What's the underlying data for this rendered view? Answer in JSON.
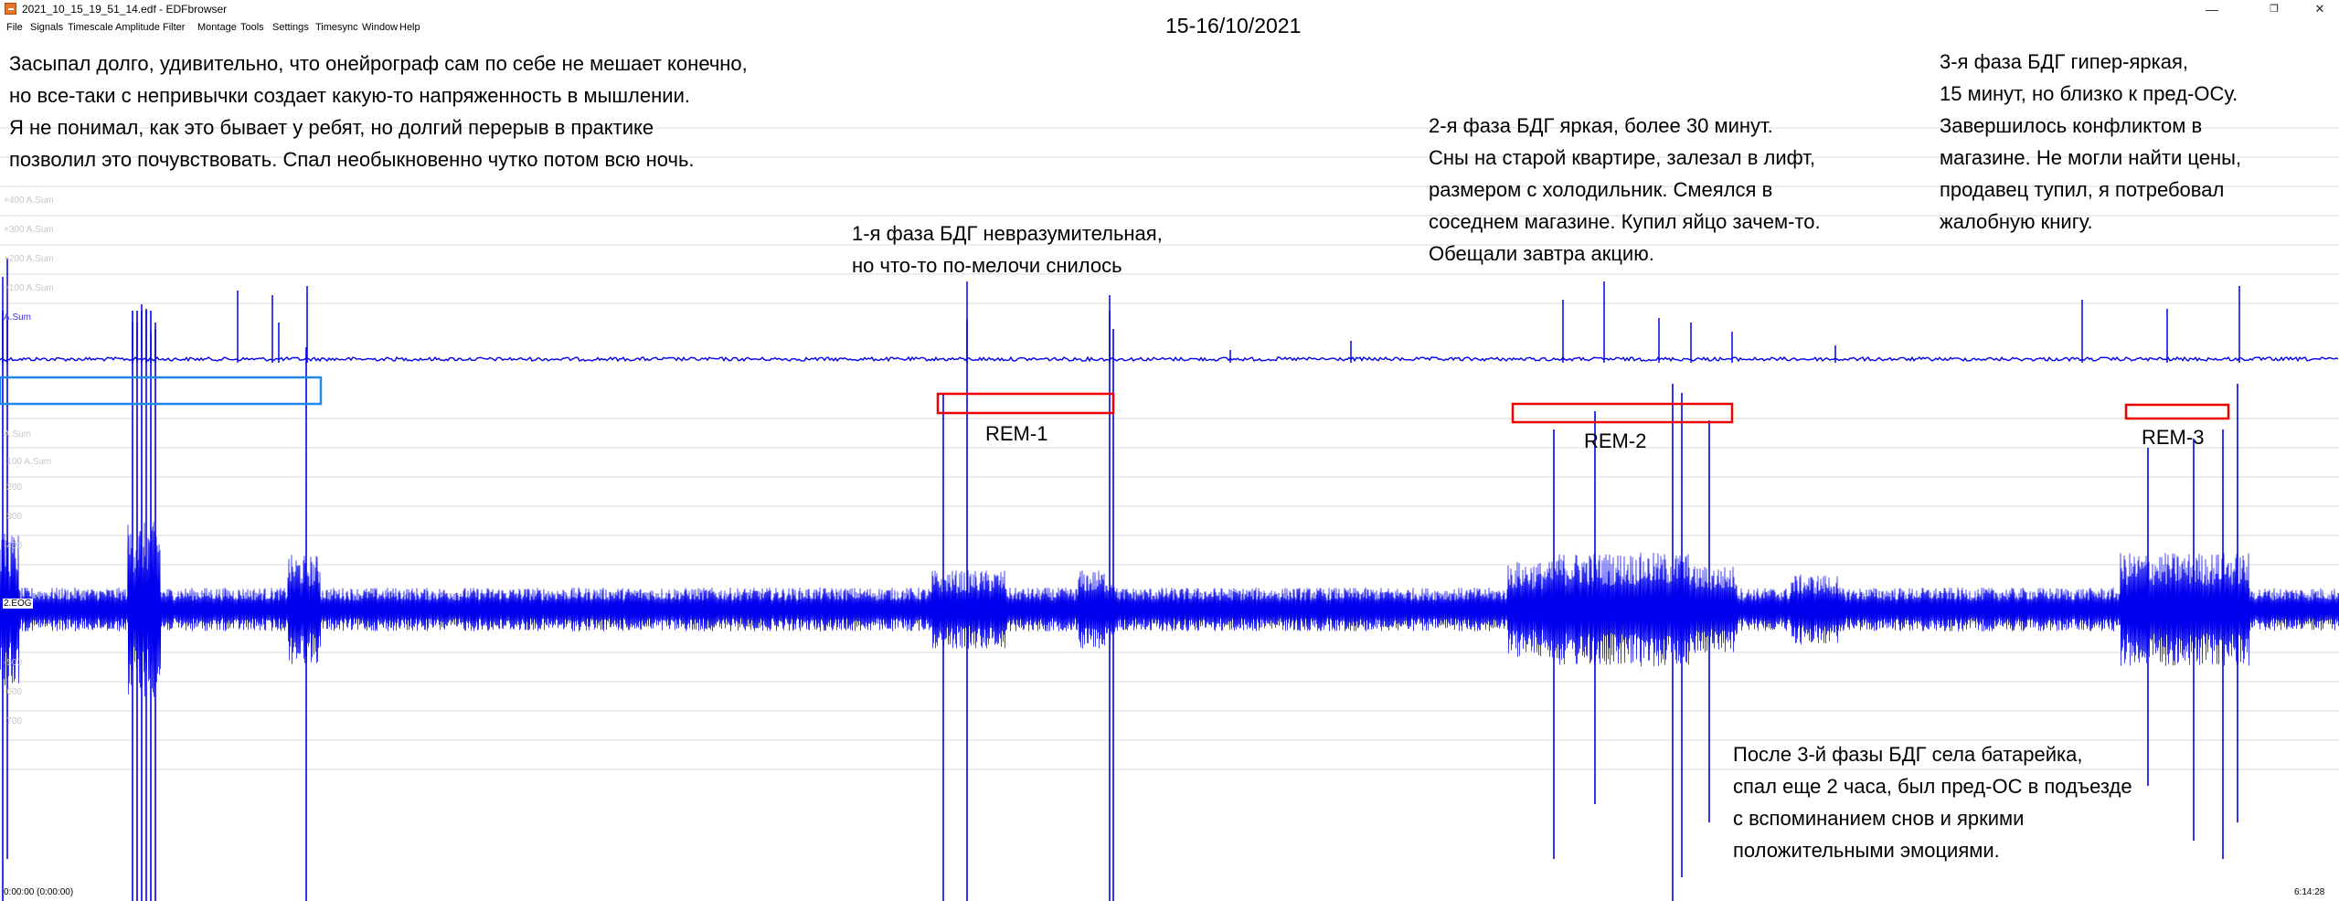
{
  "window": {
    "title": "2021_10_15_19_51_14.edf - EDFbrowser",
    "controls": {
      "minimize": "—",
      "maximize": "❐",
      "close": "✕"
    }
  },
  "menu": [
    "File",
    "Signals",
    "Timescale",
    "Amplitude",
    "Filter",
    "Montage",
    "Tools",
    "Settings",
    "Timesync",
    "Window",
    "Help"
  ],
  "heading": "15-16/10/2021",
  "notes": {
    "top_left": [
      "Засыпал долго, удивительно, что онейрограф сам по себе не мешает конечно,",
      "но все-таки с непривычки создает какую-то напряженность в мышлении.",
      "Я не понимал, как это бывает у ребят, но долгий перерыв в практике",
      "позволил это почувствовать. Спал необыкновенно чутко потом всю ночь."
    ],
    "rem1": [
      "1-я фаза БДГ невразумительная,",
      "но что-то по-мелочи снилось"
    ],
    "rem2": [
      "2-я фаза БДГ яркая, более 30 минут.",
      "Сны на старой квартире, залезал в лифт,",
      "размером с холодильник. Смеялся в",
      "соседнем магазине. Купил яйцо зачем-то.",
      "Обещали завтра акцию."
    ],
    "rem3": [
      "3-я фаза БДГ гипер-яркая,",
      "15 минут, но близко к пред-ОСу.",
      "Завершилось конфликтом в",
      "магазине. Не могли найти цены,",
      "продавец тупил, я потребовал",
      "жалобную книгу."
    ],
    "after": [
      "После 3-й фазы БДГ села батарейка,",
      "спал еще 2 часа, был пред-ОС в подъезде",
      "с вспоминанием снов и яркими",
      "положительными эмоциями."
    ]
  },
  "rem_labels": {
    "rem1": "REM-1",
    "rem2": "REM-2",
    "rem3": "REM-3"
  },
  "channels": {
    "ch1": "A.Sum",
    "ch2": "2.EOG"
  },
  "ghost_labels": [
    "+400 A.Sum",
    "+300 A.Sum",
    "+200 A.Sum",
    "+100 A.Sum",
    "A.Sum",
    "-100 A.Sum",
    "-200",
    "-300",
    "-400",
    "-500",
    "-600",
    "-700"
  ],
  "time": {
    "start": "0:00:00 (0:00:00)",
    "end": "6:14:28"
  },
  "colors": {
    "signal": "#0000ee",
    "rem_box": "#ee0000",
    "sleep_onset_box": "#2288ee",
    "grid": "#d8d8d8",
    "ghost_text": "#c7c7c7"
  }
}
